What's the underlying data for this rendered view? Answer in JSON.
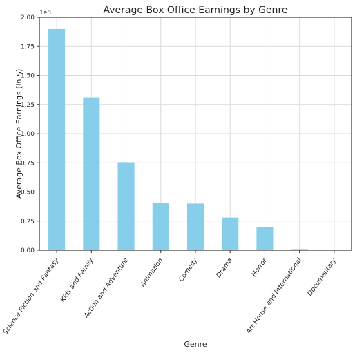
{
  "chart_data": {
    "type": "bar",
    "title": "Average Box Office Earnings by Genre",
    "xlabel": "Genre",
    "ylabel": "Average Box Office Earnings (in $)",
    "y_offset_label": "1e8",
    "ylim": [
      0,
      2.0
    ],
    "yticks": [
      "0.00",
      "0.25",
      "0.50",
      "0.75",
      "1.00",
      "1.25",
      "1.50",
      "1.75",
      "2.00"
    ],
    "grid": true,
    "bar_color": "#87ceeb",
    "categories": [
      "Science Fiction and Fantasy",
      "Kids and Family",
      "Action and Adventure",
      "Animation",
      "Comedy",
      "Drama",
      "Horror",
      "Art House and International",
      "Documentary"
    ],
    "values": [
      1.9,
      1.31,
      0.755,
      0.405,
      0.4,
      0.28,
      0.2,
      0.01,
      0.002
    ]
  }
}
